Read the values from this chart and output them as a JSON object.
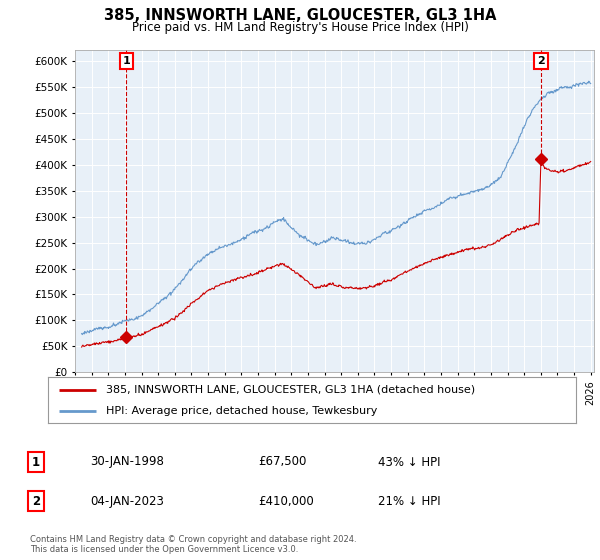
{
  "title": "385, INNSWORTH LANE, GLOUCESTER, GL3 1HA",
  "subtitle": "Price paid vs. HM Land Registry's House Price Index (HPI)",
  "ylim": [
    0,
    620000
  ],
  "yticks": [
    0,
    50000,
    100000,
    150000,
    200000,
    250000,
    300000,
    350000,
    400000,
    450000,
    500000,
    550000,
    600000
  ],
  "xlim_start": 1995.3,
  "xlim_end": 2026.2,
  "legend_line1": "385, INNSWORTH LANE, GLOUCESTER, GL3 1HA (detached house)",
  "legend_line2": "HPI: Average price, detached house, Tewkesbury",
  "annotation1_num": "1",
  "annotation1_date": "30-JAN-1998",
  "annotation1_price": "£67,500",
  "annotation1_hpi": "43% ↓ HPI",
  "annotation2_num": "2",
  "annotation2_date": "04-JAN-2023",
  "annotation2_price": "£410,000",
  "annotation2_hpi": "21% ↓ HPI",
  "footer": "Contains HM Land Registry data © Crown copyright and database right 2024.\nThis data is licensed under the Open Government Licence v3.0.",
  "price_paid_color": "#cc0000",
  "hpi_color": "#6699cc",
  "chart_bg": "#e8f0f8",
  "background_color": "#ffffff",
  "grid_color": "#ffffff",
  "sale1_x": 1998.08,
  "sale1_y": 67500,
  "sale2_x": 2023.01,
  "sale2_y": 410000
}
